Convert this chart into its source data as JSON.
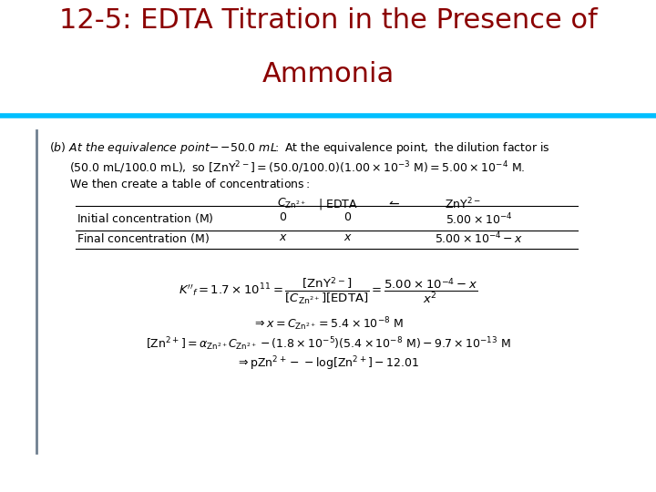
{
  "title_line1": "12-5: EDTA Titration in the Presence of",
  "title_line2": "Ammonia",
  "title_color": "#8B0000",
  "title_fontsize": 22,
  "bar_color": "#00BFFF",
  "bg_color": "#FFFFFF",
  "sidebar_color": "#708090",
  "body_fontsize": 9.0,
  "eq_fontsize": 9.5
}
